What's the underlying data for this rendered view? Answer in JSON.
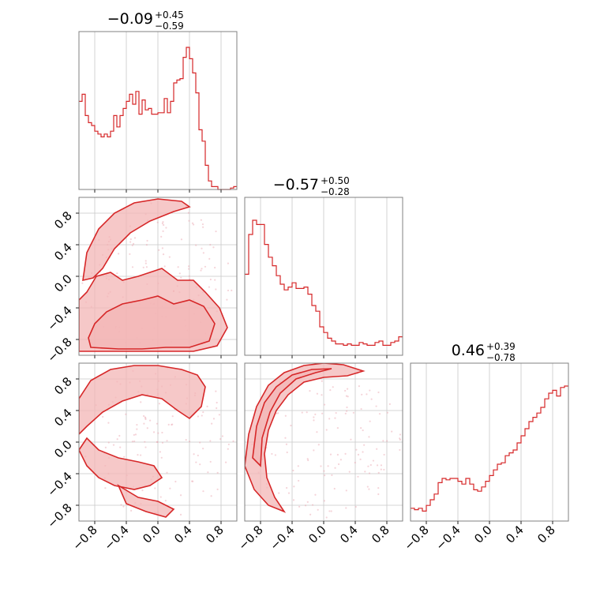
{
  "chart_data": {
    "type": "corner",
    "params": [
      "p0",
      "p1",
      "p2"
    ],
    "axis_range": [
      -1.0,
      1.0
    ],
    "tick_values": [
      -0.8,
      -0.4,
      0.0,
      0.4,
      0.8
    ],
    "tick_labels": [
      "−0.8",
      "−0.4",
      "0.0",
      "0.4",
      "0.8"
    ],
    "grid": true,
    "color": "#d62728",
    "titles": [
      {
        "median": "−0.09",
        "plus": "+0.45",
        "minus": "−0.59"
      },
      {
        "median": "−0.57",
        "plus": "+0.50",
        "minus": "−0.28"
      },
      {
        "median": "0.46",
        "plus": "+0.39",
        "minus": "−0.78"
      }
    ],
    "histograms": [
      {
        "bin_range": [
          -1.0,
          1.0
        ],
        "counts": [
          0.62,
          0.67,
          0.52,
          0.47,
          0.45,
          0.41,
          0.39,
          0.37,
          0.39,
          0.37,
          0.41,
          0.52,
          0.44,
          0.52,
          0.57,
          0.62,
          0.67,
          0.6,
          0.69,
          0.53,
          0.63,
          0.56,
          0.57,
          0.53,
          0.53,
          0.54,
          0.54,
          0.64,
          0.54,
          0.62,
          0.75,
          0.77,
          0.78,
          0.93,
          1.0,
          0.92,
          0.82,
          0.68,
          0.42,
          0.34,
          0.17,
          0.06,
          0.02,
          0.02,
          0.0,
          0.0,
          0.0,
          0.0,
          0.01,
          0.02
        ]
      },
      {
        "bin_range": [
          -1.0,
          1.0
        ],
        "counts": [
          0.57,
          0.85,
          0.95,
          0.92,
          0.92,
          0.78,
          0.69,
          0.63,
          0.56,
          0.5,
          0.46,
          0.48,
          0.51,
          0.47,
          0.47,
          0.48,
          0.43,
          0.35,
          0.31,
          0.2,
          0.16,
          0.12,
          0.1,
          0.08,
          0.08,
          0.07,
          0.08,
          0.07,
          0.07,
          0.09,
          0.08,
          0.07,
          0.07,
          0.09,
          0.1,
          0.07,
          0.07,
          0.09,
          0.1,
          0.13
        ]
      },
      {
        "bin_range": [
          -1.0,
          1.0
        ],
        "counts": [
          0.09,
          0.08,
          0.09,
          0.07,
          0.11,
          0.15,
          0.19,
          0.27,
          0.3,
          0.29,
          0.3,
          0.3,
          0.28,
          0.26,
          0.3,
          0.26,
          0.22,
          0.21,
          0.24,
          0.28,
          0.32,
          0.36,
          0.4,
          0.41,
          0.46,
          0.48,
          0.5,
          0.55,
          0.6,
          0.65,
          0.7,
          0.73,
          0.76,
          0.8,
          0.86,
          0.9,
          0.92,
          0.88,
          0.94,
          0.95
        ]
      }
    ],
    "contours": [
      {
        "pair": [
          0,
          1
        ],
        "levels": [
          [
            [
              -1.0,
              -0.95
            ],
            [
              -0.7,
              -0.95
            ],
            [
              -0.4,
              -0.95
            ],
            [
              -0.1,
              -0.95
            ],
            [
              0.2,
              -0.95
            ],
            [
              0.45,
              -0.95
            ],
            [
              0.75,
              -0.88
            ],
            [
              0.88,
              -0.65
            ],
            [
              0.78,
              -0.4
            ],
            [
              0.6,
              -0.2
            ],
            [
              0.45,
              -0.05
            ],
            [
              0.25,
              -0.05
            ],
            [
              0.05,
              0.1
            ],
            [
              -0.1,
              0.05
            ],
            [
              -0.25,
              0.0
            ],
            [
              -0.45,
              -0.05
            ],
            [
              -0.6,
              0.05
            ],
            [
              -0.78,
              0.0
            ],
            [
              -0.9,
              -0.2
            ],
            [
              -1.0,
              -0.3
            ]
          ],
          [
            [
              -0.85,
              -0.9
            ],
            [
              -0.5,
              -0.92
            ],
            [
              -0.2,
              -0.92
            ],
            [
              0.1,
              -0.9
            ],
            [
              0.4,
              -0.9
            ],
            [
              0.65,
              -0.82
            ],
            [
              0.72,
              -0.6
            ],
            [
              0.58,
              -0.38
            ],
            [
              0.4,
              -0.3
            ],
            [
              0.2,
              -0.35
            ],
            [
              0.0,
              -0.25
            ],
            [
              -0.2,
              -0.3
            ],
            [
              -0.45,
              -0.35
            ],
            [
              -0.65,
              -0.45
            ],
            [
              -0.8,
              -0.6
            ],
            [
              -0.88,
              -0.78
            ]
          ],
          [
            [
              -0.95,
              -0.05
            ],
            [
              -0.9,
              0.3
            ],
            [
              -0.75,
              0.6
            ],
            [
              -0.55,
              0.8
            ],
            [
              -0.3,
              0.93
            ],
            [
              0.0,
              0.98
            ],
            [
              0.3,
              0.95
            ],
            [
              0.4,
              0.88
            ],
            [
              0.2,
              0.82
            ],
            [
              -0.1,
              0.7
            ],
            [
              -0.35,
              0.55
            ],
            [
              -0.55,
              0.35
            ],
            [
              -0.7,
              0.1
            ],
            [
              -0.82,
              -0.02
            ]
          ]
        ]
      },
      {
        "pair": [
          0,
          2
        ],
        "levels": [
          [
            [
              -1.0,
              0.55
            ],
            [
              -0.85,
              0.78
            ],
            [
              -0.6,
              0.92
            ],
            [
              -0.3,
              0.97
            ],
            [
              0.0,
              0.97
            ],
            [
              0.3,
              0.92
            ],
            [
              0.5,
              0.85
            ],
            [
              0.6,
              0.7
            ],
            [
              0.55,
              0.45
            ],
            [
              0.4,
              0.3
            ],
            [
              0.25,
              0.4
            ],
            [
              0.05,
              0.55
            ],
            [
              -0.2,
              0.6
            ],
            [
              -0.45,
              0.52
            ],
            [
              -0.7,
              0.38
            ],
            [
              -0.9,
              0.2
            ],
            [
              -1.0,
              0.1
            ]
          ],
          [
            [
              -1.0,
              -0.1
            ],
            [
              -0.9,
              -0.3
            ],
            [
              -0.75,
              -0.45
            ],
            [
              -0.55,
              -0.55
            ],
            [
              -0.3,
              -0.6
            ],
            [
              -0.1,
              -0.55
            ],
            [
              0.05,
              -0.45
            ],
            [
              -0.05,
              -0.3
            ],
            [
              -0.25,
              -0.25
            ],
            [
              -0.5,
              -0.2
            ],
            [
              -0.75,
              -0.1
            ],
            [
              -0.9,
              0.05
            ]
          ],
          [
            [
              -0.5,
              -0.55
            ],
            [
              -0.25,
              -0.7
            ],
            [
              0.0,
              -0.75
            ],
            [
              0.2,
              -0.85
            ],
            [
              0.1,
              -0.95
            ],
            [
              -0.15,
              -0.88
            ],
            [
              -0.4,
              -0.78
            ]
          ]
        ]
      },
      {
        "pair": [
          1,
          2
        ],
        "levels": [
          [
            [
              -1.0,
              -0.3
            ],
            [
              -0.95,
              0.1
            ],
            [
              -0.85,
              0.45
            ],
            [
              -0.7,
              0.72
            ],
            [
              -0.5,
              0.88
            ],
            [
              -0.25,
              0.97
            ],
            [
              0.0,
              1.0
            ],
            [
              0.25,
              0.98
            ],
            [
              0.5,
              0.9
            ],
            [
              0.3,
              0.84
            ],
            [
              0.0,
              0.82
            ],
            [
              -0.25,
              0.76
            ],
            [
              -0.45,
              0.6
            ],
            [
              -0.6,
              0.4
            ],
            [
              -0.7,
              0.15
            ],
            [
              -0.75,
              -0.15
            ],
            [
              -0.72,
              -0.45
            ],
            [
              -0.62,
              -0.7
            ],
            [
              -0.5,
              -0.88
            ],
            [
              -0.7,
              -0.8
            ],
            [
              -0.88,
              -0.6
            ]
          ],
          [
            [
              -0.9,
              -0.2
            ],
            [
              -0.85,
              0.2
            ],
            [
              -0.75,
              0.5
            ],
            [
              -0.6,
              0.7
            ],
            [
              -0.4,
              0.85
            ],
            [
              -0.15,
              0.92
            ],
            [
              0.1,
              0.93
            ],
            [
              -0.1,
              0.88
            ],
            [
              -0.35,
              0.8
            ],
            [
              -0.55,
              0.62
            ],
            [
              -0.68,
              0.38
            ],
            [
              -0.78,
              0.05
            ],
            [
              -0.8,
              -0.3
            ]
          ]
        ]
      }
    ]
  }
}
